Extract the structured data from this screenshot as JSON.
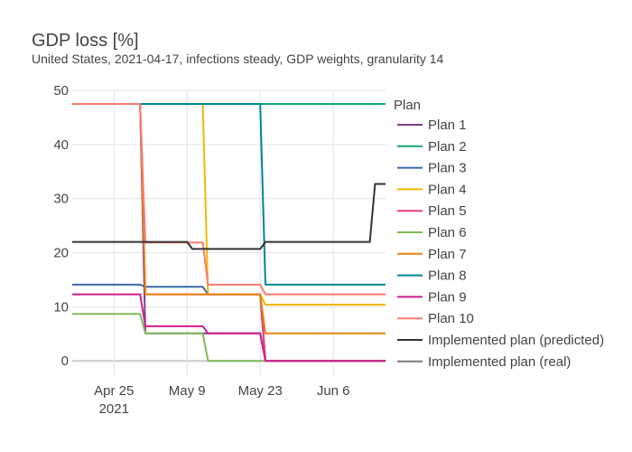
{
  "chart_data": {
    "type": "line",
    "title": "GDP loss [%]",
    "subtitle": "United States, 2021-04-17, infections steady, GDP weights, granularity 14",
    "xlabel": "",
    "ylabel": "",
    "x_range": [
      "2021-04-17",
      "2021-06-16"
    ],
    "ylim": [
      -2.8,
      50
    ],
    "y_ticks": [
      0,
      10,
      20,
      30,
      40,
      50
    ],
    "x_ticks": [
      {
        "date": "2021-04-25",
        "label": "Apr 25",
        "sublabel": "2021"
      },
      {
        "date": "2021-05-09",
        "label": "May 9",
        "sublabel": ""
      },
      {
        "date": "2021-05-23",
        "label": "May 23",
        "sublabel": ""
      },
      {
        "date": "2021-06-06",
        "label": "Jun 6",
        "sublabel": ""
      }
    ],
    "grid": true,
    "legend_title": "Plan",
    "legend_position": "right",
    "series": [
      {
        "name": "Plan 1",
        "color": "#7f3c8d",
        "x": [
          "2021-04-17",
          "2021-04-30",
          "2021-05-01",
          "2021-05-12",
          "2021-05-13",
          "2021-05-23",
          "2021-05-24",
          "2021-06-16"
        ],
        "y": [
          47.5,
          47.5,
          5.1,
          5.1,
          5.1,
          5.1,
          0,
          0
        ]
      },
      {
        "name": "Plan 2",
        "color": "#11a579",
        "x": [
          "2021-04-17",
          "2021-06-16"
        ],
        "y": [
          47.5,
          47.5
        ]
      },
      {
        "name": "Plan 3",
        "color": "#3969ac",
        "x": [
          "2021-04-17",
          "2021-04-30",
          "2021-05-01",
          "2021-05-12",
          "2021-05-13",
          "2021-05-23",
          "2021-05-24",
          "2021-06-16"
        ],
        "y": [
          14.1,
          14.1,
          13.7,
          13.7,
          12.3,
          12.3,
          0,
          0
        ]
      },
      {
        "name": "Plan 4",
        "color": "#f2b701",
        "x": [
          "2021-04-17",
          "2021-05-12",
          "2021-05-13",
          "2021-05-23",
          "2021-05-24",
          "2021-06-16"
        ],
        "y": [
          47.5,
          47.5,
          12.3,
          12.3,
          10.4,
          10.4
        ]
      },
      {
        "name": "Plan 5",
        "color": "#e73f74",
        "x": [
          "2021-04-17",
          "2021-04-30",
          "2021-05-01",
          "2021-05-12",
          "2021-05-13",
          "2021-05-23",
          "2021-05-24",
          "2021-06-16"
        ],
        "y": [
          47.5,
          47.5,
          12.3,
          12.3,
          12.3,
          12.3,
          0,
          0
        ]
      },
      {
        "name": "Plan 6",
        "color": "#80ba5a",
        "x": [
          "2021-04-17",
          "2021-04-30",
          "2021-05-01",
          "2021-05-12",
          "2021-05-13",
          "2021-06-16"
        ],
        "y": [
          8.7,
          8.7,
          5.1,
          5.1,
          0,
          0
        ]
      },
      {
        "name": "Plan 7",
        "color": "#e68310",
        "x": [
          "2021-04-17",
          "2021-04-30",
          "2021-05-01",
          "2021-05-23",
          "2021-05-24",
          "2021-06-16"
        ],
        "y": [
          47.5,
          47.5,
          12.3,
          12.3,
          5.1,
          5.1
        ]
      },
      {
        "name": "Plan 8",
        "color": "#008695",
        "x": [
          "2021-04-17",
          "2021-05-23",
          "2021-05-24",
          "2021-06-16"
        ],
        "y": [
          47.5,
          47.5,
          14.1,
          14.1
        ]
      },
      {
        "name": "Plan 9",
        "color": "#cf1c90",
        "x": [
          "2021-04-17",
          "2021-04-30",
          "2021-05-01",
          "2021-05-12",
          "2021-05-13",
          "2021-05-23",
          "2021-05-24",
          "2021-06-16"
        ],
        "y": [
          12.3,
          12.3,
          6.4,
          6.4,
          5.1,
          5.1,
          0,
          0
        ]
      },
      {
        "name": "Plan 10",
        "color": "#f97b72",
        "x": [
          "2021-04-17",
          "2021-04-30",
          "2021-05-01",
          "2021-05-12",
          "2021-05-13",
          "2021-05-23",
          "2021-05-24",
          "2021-06-16"
        ],
        "y": [
          47.5,
          47.5,
          21.9,
          21.9,
          14.1,
          14.1,
          12.3,
          12.3
        ]
      },
      {
        "name": "Implemented plan (predicted)",
        "color": "#333333",
        "x": [
          "2021-04-17",
          "2021-05-09",
          "2021-05-10",
          "2021-05-23",
          "2021-05-24",
          "2021-06-13",
          "2021-06-14",
          "2021-06-16"
        ],
        "y": [
          22.0,
          22.0,
          20.7,
          20.7,
          22.0,
          22.0,
          32.7,
          32.7
        ]
      },
      {
        "name": "Implemented plan (real)",
        "color": "#777777",
        "x": [],
        "y": []
      }
    ]
  }
}
